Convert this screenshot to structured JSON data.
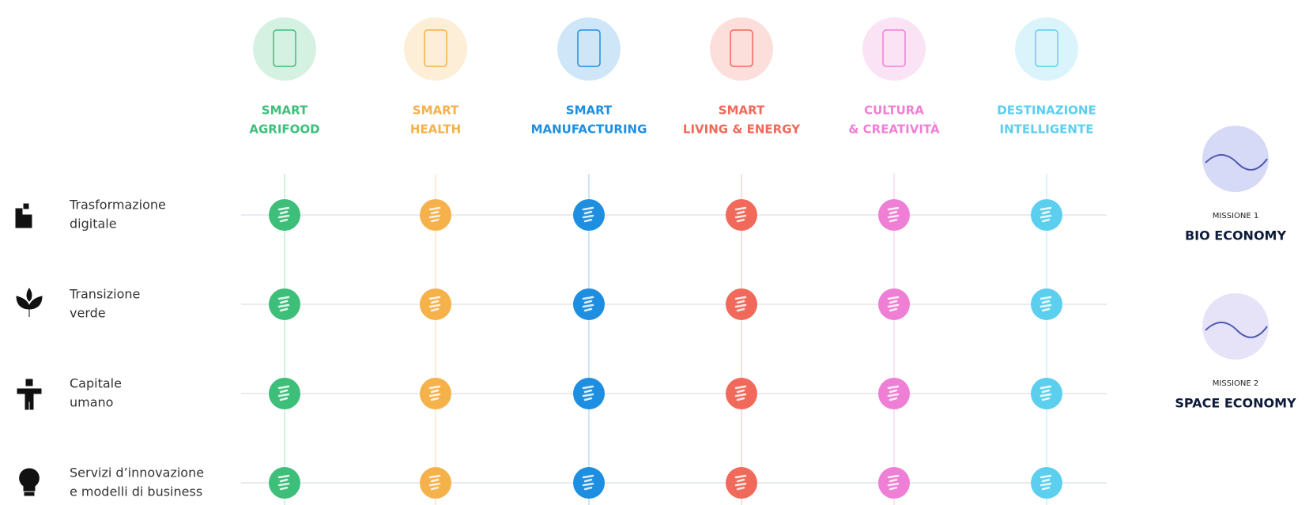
{
  "columns": [
    {
      "lines": [
        "SMART",
        "AGRIFOOD"
      ],
      "color": "#3dbf7a"
    },
    {
      "lines": [
        "SMART",
        "HEALTH"
      ],
      "color": "#f5b14a"
    },
    {
      "lines": [
        "SMART",
        "MANUFACTURING"
      ],
      "color": "#1e8fe0"
    },
    {
      "lines": [
        "SMART",
        "LIVING & ENERGY"
      ],
      "color": "#f0695a"
    },
    {
      "lines": [
        "CULTURA",
        "& CREATIVITÀ"
      ],
      "color": "#ef7fd5"
    },
    {
      "lines": [
        "DESTINAZIONE",
        "INTELLIGENTE"
      ],
      "color": "#5ccfef"
    }
  ],
  "rows": [
    {
      "lines": [
        "Trasformazione",
        "digitale"
      ]
    },
    {
      "lines": [
        "Transizione",
        "verde"
      ]
    },
    {
      "lines": [
        "Capitale",
        "umano"
      ]
    },
    {
      "lines": [
        "Servizi d’innovazione",
        "e modelli di business"
      ]
    }
  ],
  "missions": [
    {
      "label": "MISSIONE 1",
      "title": "BIO ECONOMY"
    },
    {
      "label": "MISSIONE 2",
      "title": "SPACE ECONOMY"
    }
  ]
}
